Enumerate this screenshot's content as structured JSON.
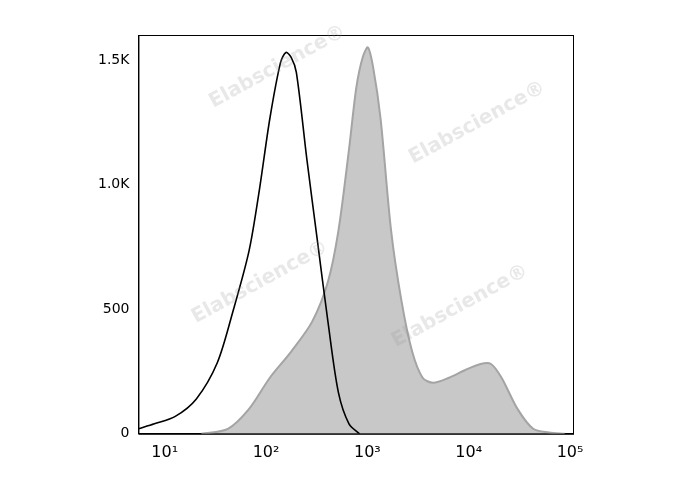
{
  "chart_data": {
    "type": "line",
    "watermark": "Elabscience®",
    "log": "x",
    "grid": false,
    "xlim": [
      5.5,
      107000
    ],
    "xticks": [
      {
        "value": 10,
        "label": "10¹"
      },
      {
        "value": 100,
        "label": "10²"
      },
      {
        "value": 1000,
        "label": "10³"
      },
      {
        "value": 10000,
        "label": "10⁴"
      },
      {
        "value": 100000,
        "label": "10⁵"
      }
    ],
    "ylim": [
      0,
      1600
    ],
    "yticks": [
      0,
      500,
      {
        "value": 1000,
        "label": "1.0K"
      },
      {
        "value": 1500,
        "label": "1.5K"
      }
    ],
    "series": [
      {
        "type": "area",
        "color": "#c8c8c8",
        "x": [
          23,
          42,
          68,
          109,
          177,
          285,
          408,
          518,
          658,
          778,
          898,
          1012,
          1140,
          1349,
          1714,
          2176,
          2766,
          3510,
          4460,
          6380,
          9140,
          13100,
          16600,
          21100,
          30300,
          43300,
          61900,
          88700
        ],
        "values": [
          0,
          20,
          100,
          225,
          330,
          450,
          610,
          815,
          1140,
          1390,
          1510,
          1550,
          1470,
          1265,
          815,
          530,
          330,
          225,
          205,
          225,
          255,
          280,
          280,
          225,
          100,
          20,
          5,
          0
        ]
      },
      {
        "type": "line",
        "color": "#000000",
        "x": [
          5.5,
          7.9,
          12.7,
          20.5,
          33,
          47,
          68,
          86,
          109,
          139,
          157,
          177,
          199,
          253,
          321,
          408,
          518,
          658,
          836
        ],
        "values": [
          20,
          40,
          70,
          140,
          285,
          490,
          735,
          980,
          1265,
          1490,
          1530,
          1510,
          1450,
          1100,
          775,
          450,
          165,
          40,
          0
        ]
      }
    ]
  }
}
